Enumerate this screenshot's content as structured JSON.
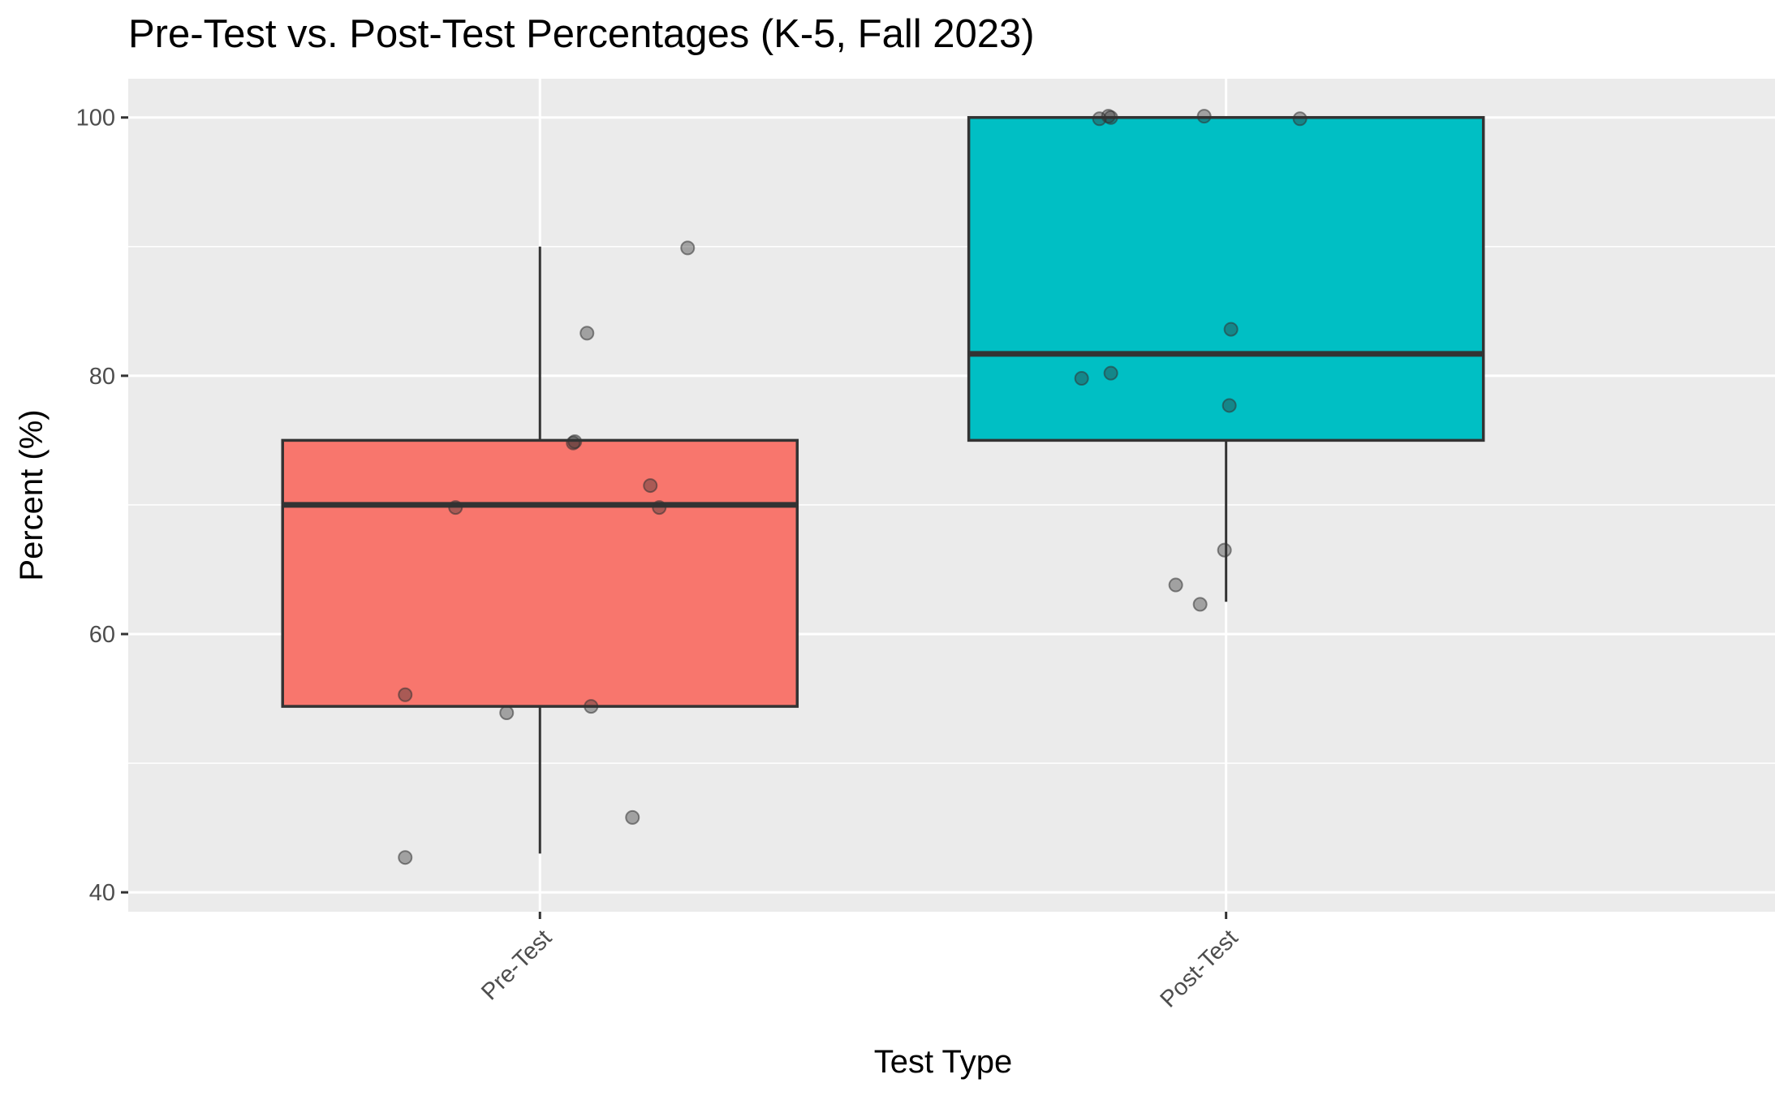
{
  "chart_data": {
    "type": "box",
    "title": "Pre-Test vs. Post-Test Percentages (K-5, Fall 2023)",
    "xlabel": "Test Type",
    "ylabel": "Percent (%)",
    "categories": [
      "Pre-Test",
      "Post-Test"
    ],
    "ylim": [
      38.5,
      103
    ],
    "yticks": [
      40,
      60,
      80,
      100
    ],
    "grid": true,
    "legend": "none",
    "boxes": [
      {
        "category": "Pre-Test",
        "fill": "#F8766D",
        "whisker_low": 43,
        "q1": 54.4,
        "median": 70,
        "q3": 75,
        "whisker_high": 90
      },
      {
        "category": "Post-Test",
        "fill": "#00BFC4",
        "whisker_low": 62.5,
        "q1": 75,
        "median": 81.7,
        "q3": 100,
        "whisker_high": 100
      }
    ],
    "points": [
      {
        "category": "Pre-Test",
        "values": [
          42.7,
          45.8,
          53.9,
          54.4,
          55.3,
          69.8,
          69.8,
          71.5,
          74.8,
          74.9,
          83.3,
          89.9
        ]
      },
      {
        "category": "Post-Test",
        "values": [
          62.3,
          63.8,
          66.5,
          77.7,
          79.8,
          80.2,
          83.6,
          99.9,
          100.1,
          100.0,
          100.1,
          99.9
        ]
      }
    ],
    "colors": {
      "panel_background": "#EBEBEB",
      "grid": "#FFFFFF",
      "outline": "#333333",
      "point": "#333333"
    }
  }
}
